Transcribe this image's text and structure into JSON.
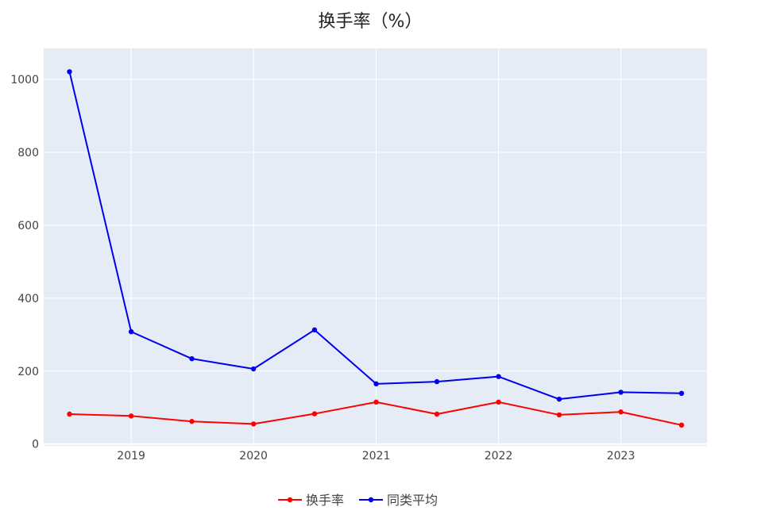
{
  "chart_data": {
    "type": "line",
    "title": "换手率（%）",
    "x": [
      "2018-07-01",
      "2019-01-01",
      "2019-07-01",
      "2020-01-01",
      "2020-07-01",
      "2021-01-01",
      "2021-07-01",
      "2022-01-01",
      "2022-07-01",
      "2023-01-01",
      "2023-07-01"
    ],
    "x_ticks": [
      "2019-01-01",
      "2020-01-01",
      "2021-01-01",
      "2022-01-01",
      "2023-01-01"
    ],
    "x_tick_labels": [
      "2019",
      "2020",
      "2021",
      "2022",
      "2023"
    ],
    "xlim": [
      "2018-04-15",
      "2023-09-15"
    ],
    "y_ticks": [
      0,
      200,
      400,
      600,
      800,
      1000
    ],
    "y_tick_labels": [
      "0",
      "200",
      "400",
      "600",
      "800",
      "1000"
    ],
    "ylim": [
      -5,
      1085
    ],
    "grid": true,
    "legend_position": "bottom-center",
    "series": [
      {
        "name": "换手率",
        "color": "#ff0000",
        "values": [
          82,
          77,
          62,
          55,
          83,
          115,
          82,
          115,
          80,
          88,
          52
        ]
      },
      {
        "name": "同类平均",
        "color": "#0000ee",
        "values": [
          1021,
          308,
          234,
          206,
          313,
          165,
          171,
          185,
          123,
          142,
          139
        ]
      }
    ]
  }
}
